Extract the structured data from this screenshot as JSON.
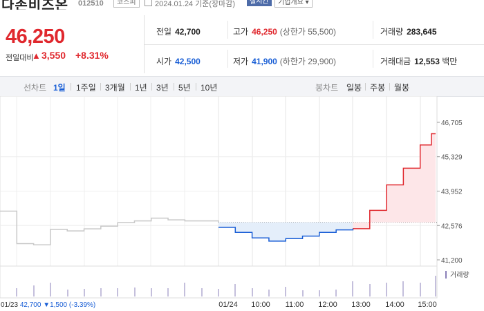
{
  "header": {
    "stock_name": "다존비즈온",
    "stock_code": "012510",
    "market": "코스피",
    "date_text": "2024.01.24 기준(장마감)",
    "realtime_label": "실시간",
    "company_info_label": "기업개요"
  },
  "price": {
    "current": "46,250",
    "change_label": "전일대비",
    "change_arrow": "▲",
    "change": "3,550",
    "change_pct": "+8.31%"
  },
  "stats": {
    "prev_close_label": "전일",
    "prev_close": "42,700",
    "high_label": "고가",
    "high": "46,250",
    "upper_limit": "(상한가 55,500)",
    "volume_label": "거래량",
    "volume": "283,645",
    "open_label": "시가",
    "open": "42,500",
    "low_label": "저가",
    "low": "41,900",
    "lower_limit": "(하한가 29,900)",
    "trade_value_label": "거래대금",
    "trade_value": "12,553",
    "trade_value_unit": "백만"
  },
  "tabs": {
    "line_chart_label": "선차트",
    "line_periods": [
      "1일",
      "1주일",
      "3개월",
      "1년",
      "3년",
      "5년",
      "10년"
    ],
    "active_period": "1일",
    "candle_label": "봉차트",
    "candle_periods": [
      "일봉",
      "주봉",
      "월봉"
    ]
  },
  "colors": {
    "up": "#e0282e",
    "down": "#1a5fd6",
    "up_fill": "#fde6e8",
    "down_fill": "#e4eefa",
    "prev_day_line": "#c8c8c8",
    "volume_bar": "#8a7fb8"
  },
  "chart_data": {
    "type": "line",
    "x_labels": [
      "01/23",
      "01/24",
      "10:00",
      "11:00",
      "12:00",
      "13:00",
      "14:00",
      "15:00"
    ],
    "y_ticks": [
      "46,705",
      "45,329",
      "43,952",
      "42,576",
      "41,200"
    ],
    "ylim": [
      41200,
      46705
    ],
    "reference_value": 42700,
    "prev_day_series": {
      "name": "01/23",
      "points": [
        [
          "09:00",
          43150
        ],
        [
          "09:30",
          41850
        ],
        [
          "10:00",
          41800
        ],
        [
          "10:30",
          42420
        ],
        [
          "11:00",
          42360
        ],
        [
          "11:30",
          42440
        ],
        [
          "12:00",
          42550
        ],
        [
          "12:30",
          42690
        ],
        [
          "13:00",
          42760
        ],
        [
          "13:30",
          42870
        ],
        [
          "14:00",
          42800
        ],
        [
          "14:30",
          42760
        ],
        [
          "15:30",
          42700
        ]
      ]
    },
    "today_series": {
      "name": "01/24",
      "points": [
        [
          "09:00",
          42500
        ],
        [
          "09:30",
          42300
        ],
        [
          "10:00",
          42080
        ],
        [
          "10:30",
          41950
        ],
        [
          "11:00",
          42050
        ],
        [
          "11:30",
          42150
        ],
        [
          "12:00",
          42300
        ],
        [
          "12:30",
          42400
        ],
        [
          "13:00",
          42450
        ],
        [
          "13:30",
          43180
        ],
        [
          "14:00",
          44200
        ],
        [
          "14:30",
          44870
        ],
        [
          "15:00",
          45800
        ],
        [
          "15:20",
          46250
        ]
      ]
    },
    "volume_label": "거래량",
    "footer": {
      "date": "01/23",
      "close": "42,700",
      "arrow": "▼",
      "change": "1,500",
      "pct": "(-3.39%)"
    }
  }
}
